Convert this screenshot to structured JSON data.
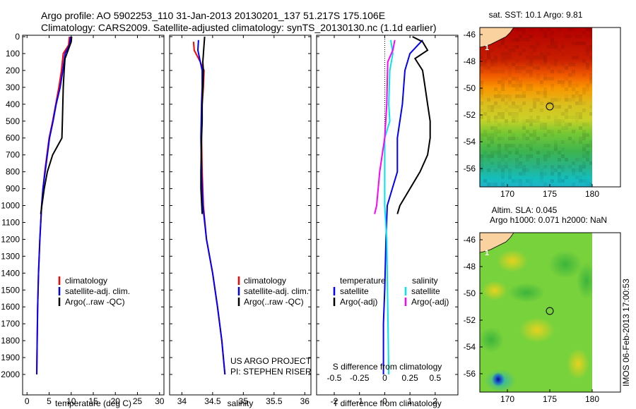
{
  "title": {
    "line1": "Argo profile: AO 5902253_110 31-Jan-2013 20130201_137 51.217S 175.106E",
    "line2": "Climatology: CARS2009. Satellite-adjusted climatology: synTS_20130130.nc (1.1d earlier)"
  },
  "footer": {
    "project": "US ARGO PROJECT",
    "pi": "PI: STEPHEN RISER"
  },
  "stamp": "IMOS 06-Feb-2013 17:00:53",
  "colors": {
    "climatology": "#ff0000",
    "satellite": "#0000ff",
    "argo": "#000000",
    "satellite_s": "#00e5ee",
    "argo_s": "#ff00ff"
  },
  "legends": {
    "temp": [
      "climatology",
      "satellite-adj. clim.",
      "Argo(..raw -QC)"
    ],
    "sal": [
      "climatology",
      "satellite-adj. clim.",
      "Argo(..raw -QC)"
    ],
    "diff_temp_title": "temperature",
    "diff_sal_title": "salinity",
    "diff_temp": [
      "satellite",
      "Argo(-adj)"
    ],
    "diff_sal": [
      "satellite",
      "Argo(-adj)"
    ]
  },
  "maps": {
    "sst_title": "sat. SST: 10.1  Argo: 9.81",
    "sla_title1": "Altim. SLA: 0.045",
    "sla_title2": "Argo h1000: 0.071 h2000: NaN",
    "lat_ticks": [
      "-46",
      "-48",
      "-50",
      "-52",
      "-54",
      "-56"
    ],
    "lon_ticks": [
      "170",
      "175",
      "180"
    ],
    "island_label": "1"
  },
  "chart_data": [
    {
      "type": "line",
      "name": "temperature",
      "xlabel": "temperature (deg C)",
      "xlim": [
        -1,
        31
      ],
      "ylim": [
        2050,
        0
      ],
      "xticks": [
        0,
        5,
        10,
        15,
        20,
        25,
        30
      ],
      "yticks": [
        0,
        100,
        200,
        300,
        400,
        500,
        600,
        700,
        800,
        900,
        1000,
        1100,
        1200,
        1300,
        1400,
        1500,
        1600,
        1700,
        1800,
        1900,
        2000
      ],
      "series": [
        {
          "name": "climatology",
          "color": "#ff0000",
          "points": [
            [
              9.6,
              0
            ],
            [
              9.4,
              50
            ],
            [
              8.2,
              100
            ],
            [
              7.8,
              200
            ],
            [
              7.2,
              300
            ],
            [
              6.5,
              400
            ],
            [
              5.8,
              500
            ],
            [
              5.0,
              600
            ],
            [
              4.5,
              700
            ],
            [
              4.0,
              800
            ],
            [
              3.6,
              900
            ],
            [
              3.3,
              1000
            ],
            [
              2.9,
              1200
            ],
            [
              2.6,
              1400
            ],
            [
              2.4,
              1600
            ],
            [
              2.3,
              1800
            ],
            [
              2.2,
              2000
            ]
          ]
        },
        {
          "name": "satellite-adj. clim.",
          "color": "#0000ff",
          "points": [
            [
              9.9,
              0
            ],
            [
              9.6,
              50
            ],
            [
              8.6,
              100
            ],
            [
              8.1,
              200
            ],
            [
              7.5,
              300
            ],
            [
              6.6,
              400
            ],
            [
              5.9,
              500
            ],
            [
              5.1,
              600
            ],
            [
              4.6,
              700
            ],
            [
              4.1,
              800
            ],
            [
              3.6,
              900
            ],
            [
              3.3,
              1000
            ],
            [
              2.9,
              1200
            ],
            [
              2.6,
              1400
            ],
            [
              2.4,
              1600
            ],
            [
              2.3,
              1800
            ],
            [
              2.2,
              2000
            ]
          ]
        },
        {
          "name": "Argo(..raw -QC)",
          "color": "#000000",
          "points": [
            [
              10.1,
              0
            ],
            [
              10.0,
              30
            ],
            [
              9.3,
              80
            ],
            [
              8.6,
              130
            ],
            [
              8.4,
              200
            ],
            [
              8.2,
              300
            ],
            [
              8.1,
              400
            ],
            [
              8.0,
              500
            ],
            [
              7.9,
              600
            ],
            [
              5.8,
              700
            ],
            [
              4.6,
              800
            ],
            [
              3.9,
              900
            ],
            [
              3.1,
              1050
            ]
          ]
        }
      ]
    },
    {
      "type": "line",
      "name": "salinity",
      "xlabel": "salinity",
      "xlim": [
        33.8,
        36.1
      ],
      "ylim": [
        2050,
        0
      ],
      "xticks": [
        34,
        34.5,
        35,
        35.5,
        36
      ],
      "series": [
        {
          "name": "climatology",
          "color": "#ff0000",
          "points": [
            [
              34.19,
              30
            ],
            [
              34.2,
              80
            ],
            [
              34.3,
              150
            ],
            [
              34.36,
              200
            ],
            [
              34.35,
              300
            ],
            [
              34.33,
              400
            ],
            [
              34.32,
              600
            ],
            [
              34.33,
              800
            ],
            [
              34.35,
              1000
            ],
            [
              34.4,
              1200
            ],
            [
              34.5,
              1400
            ],
            [
              34.58,
              1600
            ],
            [
              34.65,
              1800
            ],
            [
              34.7,
              2000
            ]
          ]
        },
        {
          "name": "satellite-adj. clim.",
          "color": "#0000ff",
          "points": [
            [
              34.27,
              20
            ],
            [
              34.26,
              80
            ],
            [
              34.3,
              150
            ],
            [
              34.33,
              200
            ],
            [
              34.33,
              300
            ],
            [
              34.32,
              400
            ],
            [
              34.31,
              600
            ],
            [
              34.32,
              800
            ],
            [
              34.34,
              1000
            ],
            [
              34.4,
              1200
            ],
            [
              34.5,
              1400
            ],
            [
              34.58,
              1600
            ],
            [
              34.65,
              1800
            ],
            [
              34.7,
              2000
            ]
          ]
        },
        {
          "name": "Argo(..raw -QC)",
          "color": "#000000",
          "points": [
            [
              34.37,
              0
            ],
            [
              34.36,
              50
            ],
            [
              34.34,
              150
            ],
            [
              34.35,
              200
            ],
            [
              34.34,
              300
            ],
            [
              34.33,
              400
            ],
            [
              34.33,
              500
            ],
            [
              34.32,
              600
            ],
            [
              34.31,
              800
            ],
            [
              34.31,
              900
            ],
            [
              34.33,
              1050
            ]
          ]
        }
      ]
    },
    {
      "type": "line",
      "name": "difference",
      "xlabel": "T difference from climatology",
      "x2label": "S difference from climatology",
      "xlim": [
        -2.7,
        2.9
      ],
      "x2lim": [
        -0.675,
        0.725
      ],
      "ylim": [
        2050,
        0
      ],
      "xticks": [
        -2,
        -1,
        0,
        1,
        2
      ],
      "x2ticks": [
        -0.5,
        -0.25,
        0,
        0.25,
        0.5
      ],
      "series": [
        {
          "name": "temperature satellite",
          "color": "#0000ff",
          "points": [
            [
              1.5,
              20
            ],
            [
              1.0,
              100
            ],
            [
              0.8,
              200
            ],
            [
              0.7,
              400
            ],
            [
              0.5,
              600
            ],
            [
              0.5,
              800
            ],
            [
              0.3,
              900
            ],
            [
              0.1,
              1000
            ],
            [
              0.05,
              1200
            ],
            [
              0.0,
              1500
            ],
            [
              -0.05,
              1700
            ],
            [
              -0.05,
              2000
            ]
          ]
        },
        {
          "name": "temperature Argo(-adj)",
          "color": "#000000",
          "points": [
            [
              1.1,
              0
            ],
            [
              1.5,
              30
            ],
            [
              1.7,
              80
            ],
            [
              1.2,
              130
            ],
            [
              1.5,
              200
            ],
            [
              1.6,
              300
            ],
            [
              1.7,
              400
            ],
            [
              1.8,
              500
            ],
            [
              1.8,
              600
            ],
            [
              1.7,
              700
            ],
            [
              1.4,
              800
            ],
            [
              1.0,
              900
            ],
            [
              0.6,
              1000
            ],
            [
              0.5,
              1050
            ]
          ]
        },
        {
          "name": "salinity satellite",
          "color": "#00e5ee",
          "points": [
            [
              0.06,
              20
            ],
            [
              0.08,
              100
            ],
            [
              0.05,
              200
            ],
            [
              0.04,
              400
            ],
            [
              0.05,
              500
            ],
            [
              0.0,
              600
            ],
            [
              0.0,
              800
            ],
            [
              0.0,
              1000
            ],
            [
              0.02,
              1200
            ],
            [
              0.03,
              1600
            ],
            [
              0.04,
              2000
            ]
          ]
        },
        {
          "name": "salinity Argo(-adj)",
          "color": "#ff00ff",
          "points": [
            [
              0.1,
              20
            ],
            [
              0.08,
              80
            ],
            [
              0.03,
              150
            ],
            [
              0.02,
              400
            ],
            [
              0.0,
              600
            ],
            [
              -0.05,
              800
            ],
            [
              -0.08,
              1000
            ],
            [
              -0.1,
              1050
            ]
          ]
        }
      ]
    }
  ]
}
